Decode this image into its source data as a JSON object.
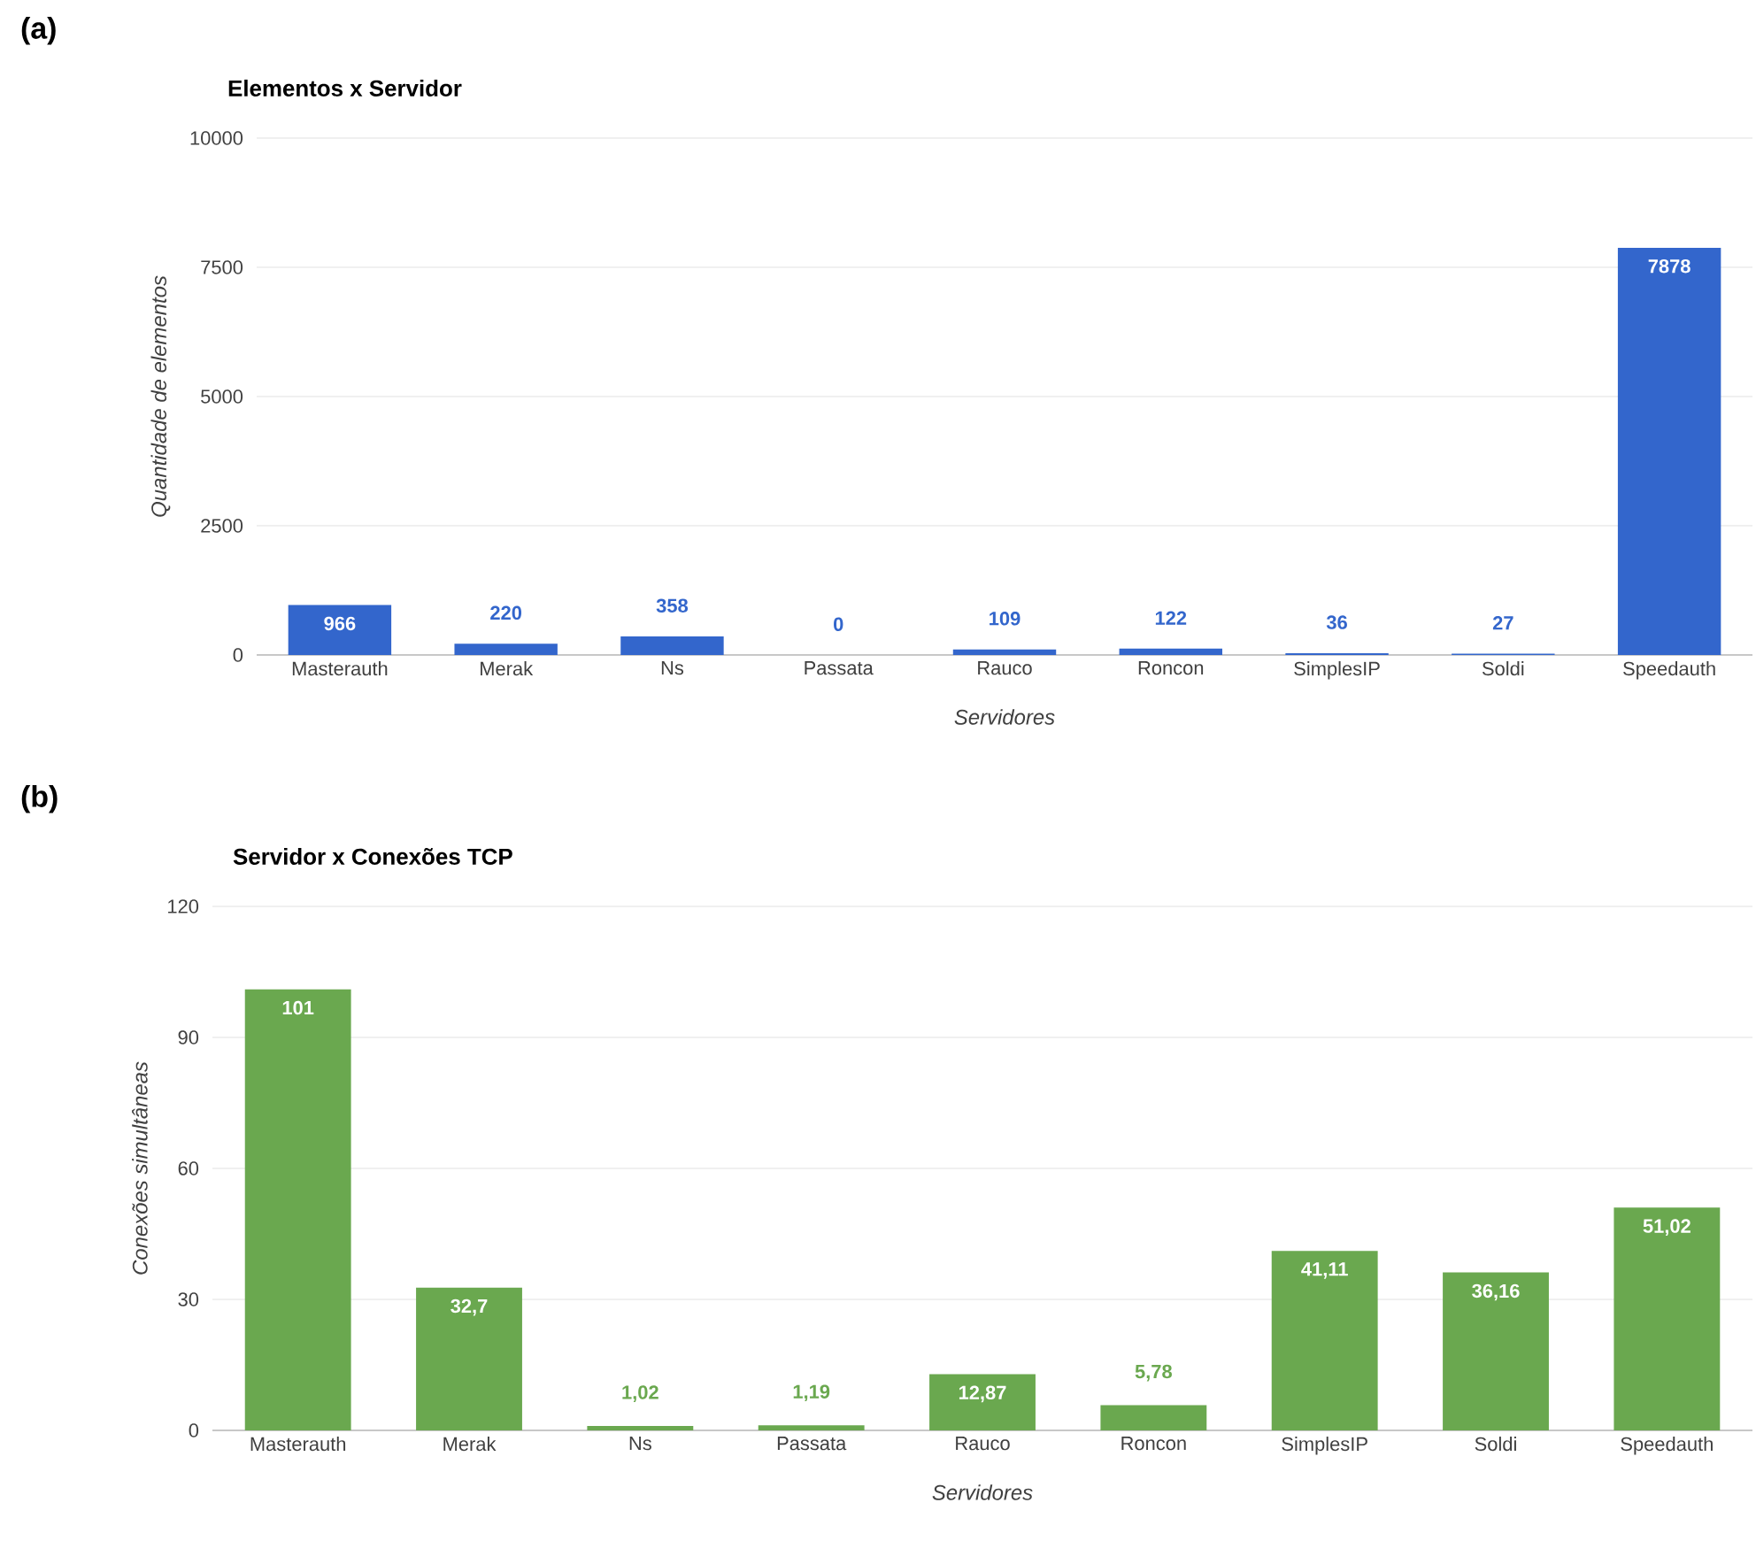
{
  "chart_data": [
    {
      "type": "bar",
      "title": "Elementos x Servidor",
      "annotations": [
        "(a)"
      ],
      "xlabel": "Servidores",
      "ylabel": "Quantidade de elementos",
      "categories": [
        "Masterauth",
        "Merak",
        "Ns",
        "Passata",
        "Rauco",
        "Roncon",
        "SimplesIP",
        "Soldi",
        "Speedauth"
      ],
      "values": [
        966,
        220,
        358,
        0,
        109,
        122,
        36,
        27,
        7878
      ],
      "color": "#3366cc",
      "data_labels": true,
      "ylim": [
        0,
        10000
      ],
      "yticks": [
        0,
        2500,
        5000,
        7500,
        10000
      ],
      "grid": "y"
    },
    {
      "type": "bar",
      "title": "Servidor x Conexões TCP",
      "annotations": [
        "(b)"
      ],
      "xlabel": "Servidores",
      "ylabel": "Conexões simultâneas",
      "categories": [
        "Masterauth",
        "Merak",
        "Ns",
        "Passata",
        "Rauco",
        "Roncon",
        "SimplesIP",
        "Soldi",
        "Speedauth"
      ],
      "values": [
        101,
        32.7,
        1.02,
        1.19,
        12.87,
        5.78,
        41.11,
        36.16,
        51.02
      ],
      "color": "#6aa84f",
      "value_labels": [
        "101",
        "32,7",
        "1,02",
        "1,19",
        "12,87",
        "5,78",
        "41,11",
        "36,16",
        "51,02"
      ],
      "ylim": [
        0,
        120
      ],
      "yticks": [
        0,
        30,
        60,
        90,
        120
      ],
      "grid": "y"
    }
  ]
}
